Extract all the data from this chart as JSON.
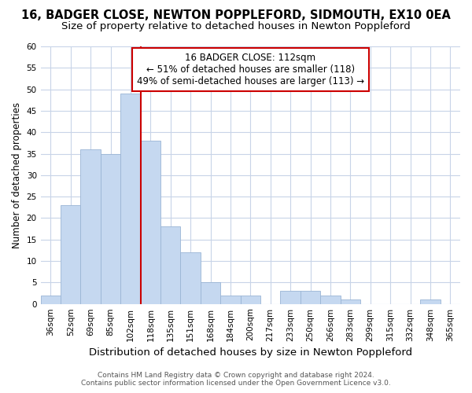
{
  "title": "16, BADGER CLOSE, NEWTON POPPLEFORD, SIDMOUTH, EX10 0EA",
  "subtitle": "Size of property relative to detached houses in Newton Poppleford",
  "xlabel": "Distribution of detached houses by size in Newton Poppleford",
  "ylabel": "Number of detached properties",
  "bar_labels": [
    "36sqm",
    "52sqm",
    "69sqm",
    "85sqm",
    "102sqm",
    "118sqm",
    "135sqm",
    "151sqm",
    "168sqm",
    "184sqm",
    "200sqm",
    "217sqm",
    "233sqm",
    "250sqm",
    "266sqm",
    "283sqm",
    "299sqm",
    "315sqm",
    "332sqm",
    "348sqm",
    "365sqm"
  ],
  "bar_values": [
    2,
    23,
    36,
    35,
    49,
    38,
    18,
    12,
    5,
    2,
    2,
    0,
    3,
    3,
    2,
    1,
    0,
    0,
    0,
    1,
    0
  ],
  "bar_color": "#c5d8f0",
  "bar_edge_color": "#9ab5d5",
  "vline_color": "#cc0000",
  "vline_x_index": 4,
  "ylim": [
    0,
    60
  ],
  "yticks": [
    0,
    5,
    10,
    15,
    20,
    25,
    30,
    35,
    40,
    45,
    50,
    55,
    60
  ],
  "annotation_line1": "16 BADGER CLOSE: 112sqm",
  "annotation_line2": "← 51% of detached houses are smaller (118)",
  "annotation_line3": "49% of semi-detached houses are larger (113) →",
  "annotation_box_edge": "#cc0000",
  "footer_line1": "Contains HM Land Registry data © Crown copyright and database right 2024.",
  "footer_line2": "Contains public sector information licensed under the Open Government Licence v3.0.",
  "bg_color": "#ffffff",
  "grid_color": "#c8d4e8",
  "title_fontsize": 10.5,
  "subtitle_fontsize": 9.5,
  "xlabel_fontsize": 9.5,
  "ylabel_fontsize": 8.5,
  "tick_fontsize": 7.5,
  "annotation_fontsize": 8.5,
  "footer_fontsize": 6.5
}
